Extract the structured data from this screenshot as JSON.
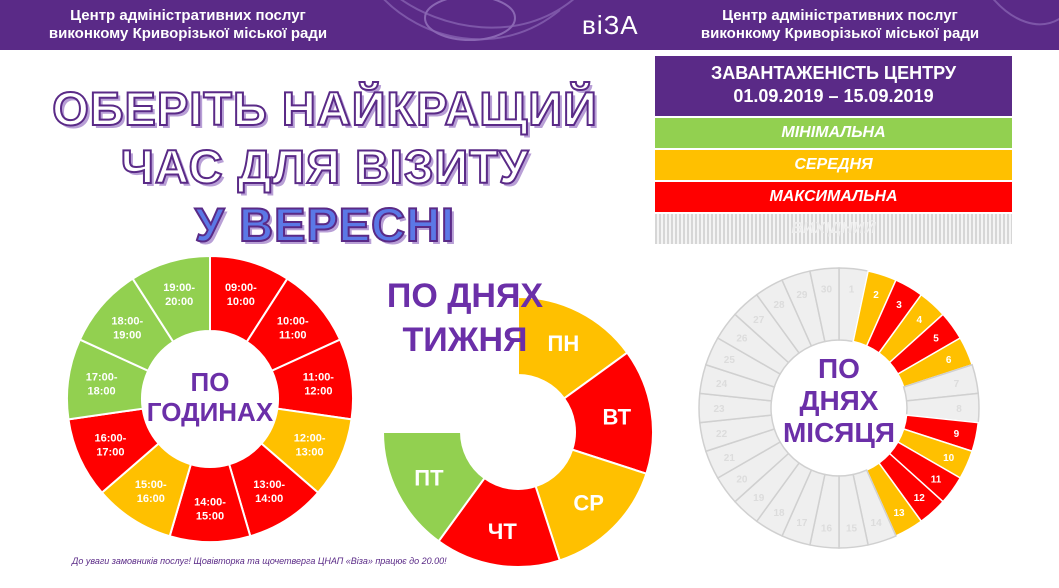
{
  "header": {
    "left_line1": "Центр адміністративних послуг",
    "left_line2": "виконкому Криворізької міської ради",
    "logo": "віЗА",
    "right_line1": "Центр адміністративних послуг",
    "right_line2": "виконкому Криворізької міської ради"
  },
  "headline": {
    "line1": "ОБЕРІТЬ НАЙКРАЩИЙ",
    "line2": "ЧАС ДЛЯ ВІЗИТУ",
    "line3": "У ВЕРЕСНІ"
  },
  "legend": {
    "title_line1": "ЗАВАНТАЖЕНІСТЬ ЦЕНТРУ",
    "title_line2": "01.09.2019 – 15.09.2019",
    "items": [
      {
        "label": "МІНІМАЛЬНА",
        "color": "#92d050"
      },
      {
        "label": "СЕРЕДНЯ",
        "color": "#ffc000"
      },
      {
        "label": "МАКСИМАЛЬНА",
        "color": "#ff0000"
      },
      {
        "label": "ВИХІДНИЙ",
        "color": "hatched-gray"
      }
    ]
  },
  "colors": {
    "min": "#92d050",
    "mid": "#ffc000",
    "max": "#ff0000",
    "off": "#efefef",
    "brand": "#5a2a87"
  },
  "chart_data": [
    {
      "type": "pie",
      "center_label_line1": "ПО",
      "center_label_line2": "ГОДИНАХ",
      "slices": [
        {
          "label_top": "09:00-",
          "label_bottom": "10:00",
          "level": "max"
        },
        {
          "label_top": "10:00-",
          "label_bottom": "11:00",
          "level": "max"
        },
        {
          "label_top": "11:00-",
          "label_bottom": "12:00",
          "level": "max"
        },
        {
          "label_top": "12:00-",
          "label_bottom": "13:00",
          "level": "mid"
        },
        {
          "label_top": "13:00-",
          "label_bottom": "14:00",
          "level": "max"
        },
        {
          "label_top": "14:00-",
          "label_bottom": "15:00",
          "level": "max"
        },
        {
          "label_top": "15:00-",
          "label_bottom": "16:00",
          "level": "mid"
        },
        {
          "label_top": "16:00-",
          "label_bottom": "17:00",
          "level": "max"
        },
        {
          "label_top": "17:00-",
          "label_bottom": "18:00",
          "level": "min"
        },
        {
          "label_top": "18:00-",
          "label_bottom": "19:00",
          "level": "min"
        },
        {
          "label_top": "19:00-",
          "label_bottom": "20:00",
          "level": "min"
        }
      ]
    },
    {
      "type": "pie",
      "title_line1": "ПО ДНЯХ",
      "title_line2": "ТИЖНЯ",
      "slices": [
        {
          "label": "ПН",
          "level": "mid"
        },
        {
          "label": "ВТ",
          "level": "max"
        },
        {
          "label": "СР",
          "level": "mid"
        },
        {
          "label": "ЧТ",
          "level": "max"
        },
        {
          "label": "ПТ",
          "level": "min"
        }
      ]
    },
    {
      "type": "pie",
      "center_label_line1": "ПО",
      "center_label_line2": "ДНЯХ",
      "center_label_line3": "МІСЯЦЯ",
      "days": [
        {
          "day": "1",
          "level": "off"
        },
        {
          "day": "2",
          "level": "mid"
        },
        {
          "day": "3",
          "level": "max"
        },
        {
          "day": "4",
          "level": "mid"
        },
        {
          "day": "5",
          "level": "max"
        },
        {
          "day": "6",
          "level": "mid"
        },
        {
          "day": "7",
          "level": "off"
        },
        {
          "day": "8",
          "level": "off"
        },
        {
          "day": "9",
          "level": "max"
        },
        {
          "day": "10",
          "level": "mid"
        },
        {
          "day": "11",
          "level": "max"
        },
        {
          "day": "12",
          "level": "max"
        },
        {
          "day": "13",
          "level": "mid"
        },
        {
          "day": "14",
          "level": "off"
        },
        {
          "day": "15",
          "level": "off"
        },
        {
          "day": "16",
          "level": "off"
        },
        {
          "day": "17",
          "level": "off"
        },
        {
          "day": "18",
          "level": "off"
        },
        {
          "day": "19",
          "level": "off"
        },
        {
          "day": "20",
          "level": "off"
        },
        {
          "day": "21",
          "level": "off"
        },
        {
          "day": "22",
          "level": "off"
        },
        {
          "day": "23",
          "level": "off"
        },
        {
          "day": "24",
          "level": "off"
        },
        {
          "day": "25",
          "level": "off"
        },
        {
          "day": "26",
          "level": "off"
        },
        {
          "day": "27",
          "level": "off"
        },
        {
          "day": "28",
          "level": "off"
        },
        {
          "day": "29",
          "level": "off"
        },
        {
          "day": "30",
          "level": "off"
        }
      ]
    }
  ],
  "footer_note": "До уваги замовників послуг! Щовівторка та щочетверга ЦНАП «Віза» працює до 20.00!"
}
